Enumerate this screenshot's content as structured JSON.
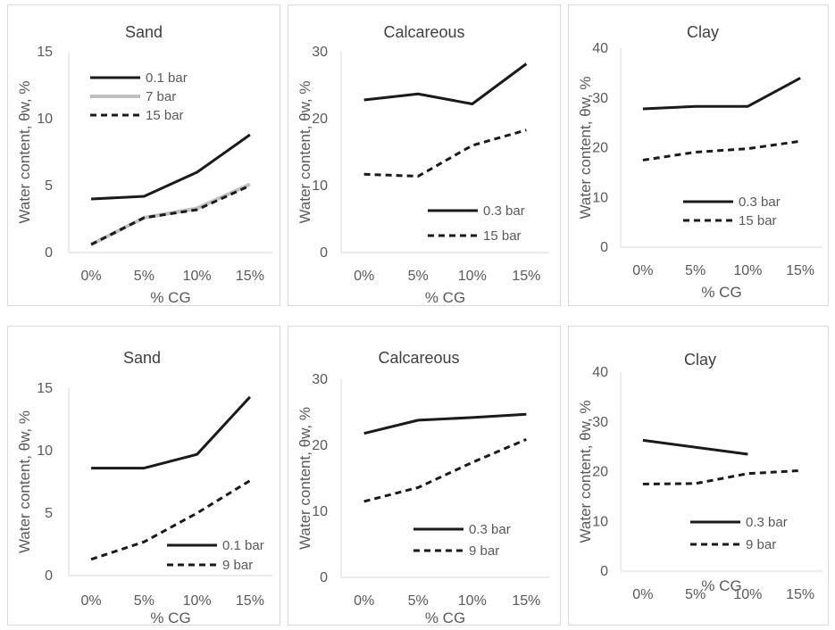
{
  "colors": {
    "black": "#1a1a1a",
    "gray": "#bfbfbf",
    "text": "#595959"
  },
  "chart_data": [
    {
      "type": "line",
      "title": "Sand",
      "xlabel": "% CG",
      "ylabel": "Water content, θw, %",
      "categories": [
        "0%",
        "5%",
        "10%",
        "15%"
      ],
      "ylim": [
        0,
        15
      ],
      "yticks": [
        0,
        5,
        10,
        15
      ],
      "legend_position": "top-left",
      "series": [
        {
          "name": "0.1 bar",
          "values": [
            4.0,
            4.2,
            6.0,
            8.8
          ],
          "color": "#1a1a1a",
          "dash": "solid"
        },
        {
          "name": "7 bar",
          "values": [
            0.6,
            2.6,
            3.3,
            5.1
          ],
          "color": "#bfbfbf",
          "dash": "solid"
        },
        {
          "name": "15 bar",
          "values": [
            0.6,
            2.6,
            3.2,
            5.0
          ],
          "color": "#1a1a1a",
          "dash": "dashed"
        }
      ]
    },
    {
      "type": "line",
      "title": "Calcareous",
      "xlabel": "% CG",
      "ylabel": "Water content, θw, %",
      "categories": [
        "0%",
        "5%",
        "10%",
        "15%"
      ],
      "ylim": [
        0,
        30
      ],
      "yticks": [
        0,
        10,
        20,
        30
      ],
      "legend_position": "bottom-right",
      "series": [
        {
          "name": "0.3 bar",
          "values": [
            22.8,
            23.7,
            22.2,
            28.2
          ],
          "color": "#1a1a1a",
          "dash": "solid"
        },
        {
          "name": "15 bar",
          "values": [
            11.7,
            11.4,
            16.0,
            18.3
          ],
          "color": "#1a1a1a",
          "dash": "dashed"
        }
      ]
    },
    {
      "type": "line",
      "title": "Clay",
      "xlabel": "% CG",
      "ylabel": "Water content, θw, %",
      "categories": [
        "0%",
        "5%",
        "10%",
        "15%"
      ],
      "ylim": [
        0,
        40
      ],
      "yticks": [
        0,
        10,
        20,
        30,
        40
      ],
      "legend_position": "bottom-center",
      "series": [
        {
          "name": "0.3 bar",
          "values": [
            27.8,
            28.3,
            28.3,
            34.0
          ],
          "color": "#1a1a1a",
          "dash": "solid"
        },
        {
          "name": "15 bar",
          "values": [
            17.5,
            19.1,
            19.8,
            21.3
          ],
          "color": "#1a1a1a",
          "dash": "dashed"
        }
      ]
    },
    {
      "type": "line",
      "title": "Sand",
      "xlabel": "% CG",
      "ylabel": "Water content, θw, %",
      "categories": [
        "0%",
        "5%",
        "10%",
        "15%"
      ],
      "ylim": [
        0,
        15
      ],
      "yticks": [
        0,
        5,
        10,
        15
      ],
      "legend_position": "bottom-right",
      "series": [
        {
          "name": "0.1 bar",
          "values": [
            8.6,
            8.6,
            9.7,
            14.3
          ],
          "color": "#1a1a1a",
          "dash": "solid"
        },
        {
          "name": "9 bar",
          "values": [
            1.3,
            2.7,
            5.0,
            7.6
          ],
          "color": "#1a1a1a",
          "dash": "dashed"
        }
      ]
    },
    {
      "type": "line",
      "title": "Calcareous",
      "xlabel": "% CG",
      "ylabel": "Water content, θw, %",
      "categories": [
        "0%",
        "5%",
        "10%",
        "15%"
      ],
      "ylim": [
        0,
        30
      ],
      "yticks": [
        0,
        10,
        20,
        30
      ],
      "legend_position": "bottom-right",
      "series": [
        {
          "name": "0.3 bar",
          "values": [
            21.8,
            23.8,
            24.2,
            24.7
          ],
          "color": "#1a1a1a",
          "dash": "solid"
        },
        {
          "name": "9 bar",
          "values": [
            11.5,
            13.6,
            17.4,
            20.9
          ],
          "color": "#1a1a1a",
          "dash": "dashed"
        }
      ]
    },
    {
      "type": "line",
      "title": "Clay",
      "xlabel": "% CG",
      "ylabel": "Water content, θw, %",
      "categories": [
        "0%",
        "5%",
        "10%",
        "15%"
      ],
      "ylim": [
        0,
        40
      ],
      "yticks": [
        0,
        10,
        20,
        30,
        40
      ],
      "legend_position": "bottom-center",
      "series": [
        {
          "name": "0.3 bar",
          "values": [
            26.3,
            null,
            23.5,
            null
          ],
          "color": "#1a1a1a",
          "dash": "solid"
        },
        {
          "name": "9 bar",
          "values": [
            17.5,
            17.6,
            19.6,
            20.2
          ],
          "color": "#1a1a1a",
          "dash": "dashed"
        }
      ]
    }
  ]
}
